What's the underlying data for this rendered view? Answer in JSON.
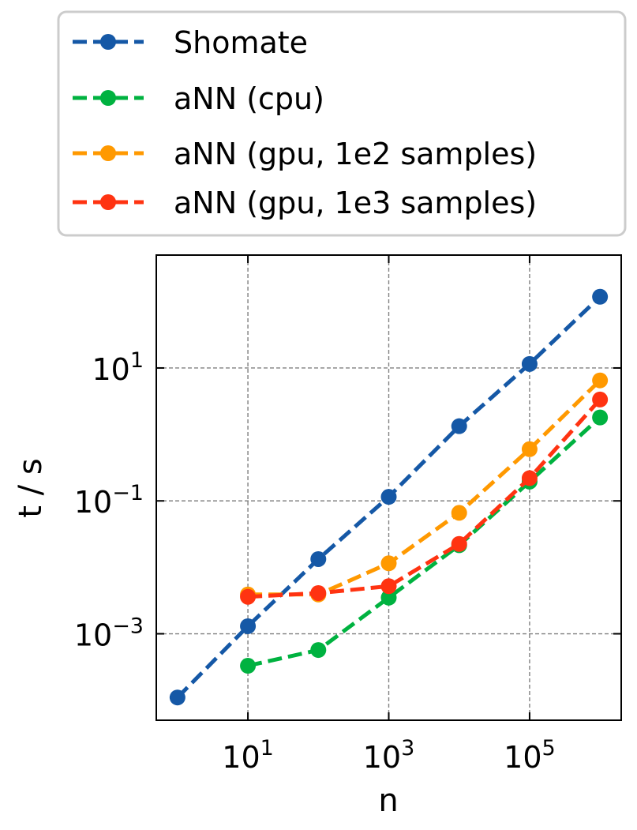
{
  "chart_data": {
    "type": "line",
    "title": "",
    "xlabel": "n",
    "ylabel": "t / s",
    "xscale": "log",
    "yscale": "log",
    "xlim": [
      0.5,
      2000000
    ],
    "ylim": [
      5e-05,
      500
    ],
    "grid": true,
    "grid_style": "dashed",
    "legend_position": "above plot",
    "x_ticks": [
      {
        "value": 10,
        "base": "10",
        "exp": "1"
      },
      {
        "value": 1000,
        "base": "10",
        "exp": "3"
      },
      {
        "value": 100000,
        "base": "10",
        "exp": "5"
      }
    ],
    "y_ticks": [
      {
        "value": 0.001,
        "base": "10",
        "exp": "−3"
      },
      {
        "value": 0.1,
        "base": "10",
        "exp": "−1"
      },
      {
        "value": 10,
        "base": "10",
        "exp": "1"
      }
    ],
    "series": [
      {
        "name": "Shomate",
        "color": "#1558a6",
        "x": [
          1,
          10,
          100,
          1000,
          10000,
          100000,
          1000000
        ],
        "y": [
          0.00011,
          0.0013,
          0.0133,
          0.115,
          1.33,
          11.5,
          118
        ]
      },
      {
        "name": "aNN (cpu)",
        "color": "#00b240",
        "x": [
          10,
          100,
          1000,
          10000,
          100000,
          1000000
        ],
        "y": [
          0.00033,
          0.00057,
          0.0035,
          0.0215,
          0.195,
          1.8
        ]
      },
      {
        "name": "aNN (gpu, 1e2 samples)",
        "color": "#ff9900",
        "x": [
          10,
          100,
          1000,
          10000,
          100000,
          1000000
        ],
        "y": [
          0.0039,
          0.0039,
          0.0115,
          0.066,
          0.6,
          6.5
        ]
      },
      {
        "name": "aNN (gpu, 1e3 samples)",
        "color": "#ff3311",
        "x": [
          10,
          100,
          1000,
          10000,
          100000,
          1000000
        ],
        "y": [
          0.0036,
          0.0041,
          0.0052,
          0.0225,
          0.22,
          3.35
        ]
      }
    ]
  }
}
